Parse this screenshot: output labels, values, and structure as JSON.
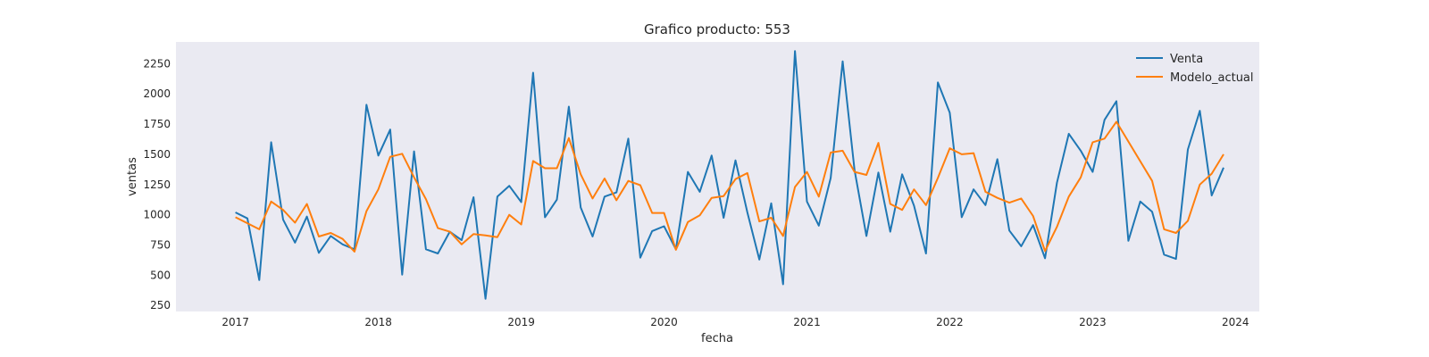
{
  "chart_data": {
    "type": "line",
    "title": "Grafico producto: 553",
    "xlabel": "fecha",
    "ylabel": "ventas",
    "xlim": [
      "2016-08",
      "2024-03"
    ],
    "ylim": [
      200,
      2430
    ],
    "grid": false,
    "legend": "top-right",
    "x_ticks": [
      "2017",
      "2018",
      "2019",
      "2020",
      "2021",
      "2022",
      "2023",
      "2024"
    ],
    "y_ticks": [
      250,
      500,
      750,
      1000,
      1250,
      1500,
      1750,
      2000,
      2250
    ],
    "background": "#eaeaf2",
    "series": [
      {
        "name": "Venta",
        "color": "#1f77b4",
        "x": [
          "2017-01",
          "2017-02",
          "2017-03",
          "2017-04",
          "2017-05",
          "2017-06",
          "2017-07",
          "2017-08",
          "2017-09",
          "2017-10",
          "2017-11",
          "2017-12",
          "2018-01",
          "2018-02",
          "2018-03",
          "2018-04",
          "2018-05",
          "2018-06",
          "2018-07",
          "2018-08",
          "2018-09",
          "2018-10",
          "2018-11",
          "2018-12",
          "2019-01",
          "2019-02",
          "2019-03",
          "2019-04",
          "2019-05",
          "2019-06",
          "2019-07",
          "2019-08",
          "2019-09",
          "2019-10",
          "2019-11",
          "2019-12",
          "2020-01",
          "2020-02",
          "2020-03",
          "2020-04",
          "2020-05",
          "2020-06",
          "2020-07",
          "2020-08",
          "2020-09",
          "2020-10",
          "2020-11",
          "2020-12",
          "2021-01",
          "2021-02",
          "2021-03",
          "2021-04",
          "2021-05",
          "2021-06",
          "2021-07",
          "2021-08",
          "2021-09",
          "2021-10",
          "2021-11",
          "2021-12",
          "2022-01",
          "2022-02",
          "2022-03",
          "2022-04",
          "2022-05",
          "2022-06",
          "2022-07",
          "2022-08",
          "2022-09",
          "2022-10",
          "2022-11",
          "2022-12",
          "2023-01",
          "2023-02",
          "2023-03",
          "2023-04",
          "2023-05",
          "2023-06",
          "2023-07",
          "2023-08",
          "2023-09",
          "2023-10",
          "2023-11",
          "2023-12"
        ],
        "values": [
          1020,
          970,
          460,
          1600,
          960,
          770,
          985,
          685,
          825,
          755,
          715,
          1910,
          1490,
          1705,
          505,
          1525,
          715,
          680,
          860,
          790,
          1145,
          305,
          1150,
          1240,
          1105,
          2175,
          980,
          1125,
          1895,
          1060,
          820,
          1150,
          1185,
          1630,
          645,
          865,
          905,
          715,
          1355,
          1190,
          1490,
          975,
          1450,
          1020,
          630,
          1095,
          425,
          2355,
          1110,
          910,
          1305,
          2270,
          1370,
          825,
          1350,
          860,
          1335,
          1075,
          680,
          2095,
          1845,
          980,
          1210,
          1080,
          1460,
          870,
          740,
          915,
          640,
          1265,
          1670,
          1530,
          1355,
          1785,
          1940,
          785,
          1110,
          1025,
          670,
          635,
          1540,
          1860,
          1160,
          1390
        ]
      },
      {
        "name": "Modelo_actual",
        "color": "#ff7f0e",
        "x": [
          "2017-01",
          "2017-02",
          "2017-03",
          "2017-04",
          "2017-05",
          "2017-06",
          "2017-07",
          "2017-08",
          "2017-09",
          "2017-10",
          "2017-11",
          "2017-12",
          "2018-01",
          "2018-02",
          "2018-03",
          "2018-04",
          "2018-05",
          "2018-06",
          "2018-07",
          "2018-08",
          "2018-09",
          "2018-10",
          "2018-11",
          "2018-12",
          "2019-01",
          "2019-02",
          "2019-03",
          "2019-04",
          "2019-05",
          "2019-06",
          "2019-07",
          "2019-08",
          "2019-09",
          "2019-10",
          "2019-11",
          "2019-12",
          "2020-01",
          "2020-02",
          "2020-03",
          "2020-04",
          "2020-05",
          "2020-06",
          "2020-07",
          "2020-08",
          "2020-09",
          "2020-10",
          "2020-11",
          "2020-12",
          "2021-01",
          "2021-02",
          "2021-03",
          "2021-04",
          "2021-05",
          "2021-06",
          "2021-07",
          "2021-08",
          "2021-09",
          "2021-10",
          "2021-11",
          "2021-12",
          "2022-01",
          "2022-02",
          "2022-03",
          "2022-04",
          "2022-05",
          "2022-06",
          "2022-07",
          "2022-08",
          "2022-09",
          "2022-10",
          "2022-11",
          "2022-12",
          "2023-01",
          "2023-02",
          "2023-03",
          "2023-06",
          "2023-07",
          "2023-08",
          "2023-09",
          "2023-10",
          "2023-11",
          "2023-12"
        ],
        "values": [
          980,
          930,
          880,
          1110,
          1040,
          935,
          1090,
          820,
          850,
          800,
          695,
          1030,
          1210,
          1480,
          1505,
          1310,
          1130,
          890,
          860,
          755,
          840,
          830,
          815,
          1000,
          920,
          1445,
          1385,
          1385,
          1635,
          1335,
          1135,
          1300,
          1120,
          1280,
          1245,
          1015,
          1015,
          710,
          940,
          995,
          1140,
          1155,
          1295,
          1345,
          945,
          975,
          825,
          1230,
          1355,
          1150,
          1515,
          1530,
          1355,
          1330,
          1595,
          1090,
          1040,
          1210,
          1080,
          1305,
          1550,
          1500,
          1510,
          1190,
          1140,
          1100,
          1135,
          990,
          700,
          900,
          1150,
          1310,
          1600,
          1630,
          1770,
          1280,
          880,
          850,
          950,
          1250,
          1340,
          1500
        ]
      }
    ]
  }
}
